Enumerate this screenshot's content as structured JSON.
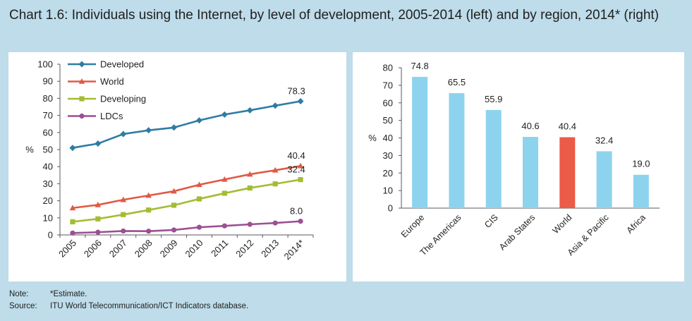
{
  "title": "Chart 1.6: Individuals using the Internet, by level of development, 2005-2014 (left) and by region, 2014* (right)",
  "notes": {
    "note_label": "Note:",
    "note_text": "*Estimate.",
    "source_label": "Source:",
    "source_text": "ITU World Telecommunication/ICT Indicators database."
  },
  "chart_data": [
    {
      "type": "line",
      "title": "",
      "xlabel": "",
      "ylabel": "%",
      "ylim": [
        0,
        100
      ],
      "yticks": [
        0,
        10,
        20,
        30,
        40,
        50,
        60,
        70,
        80,
        90,
        100
      ],
      "grid": false,
      "legend_position": "top-left",
      "x": [
        "2005",
        "2006",
        "2007",
        "2008",
        "2009",
        "2010",
        "2011",
        "2012",
        "2013",
        "2014*"
      ],
      "series": [
        {
          "name": "Developed",
          "color": "#2e7ca3",
          "marker": "diamond",
          "values": [
            51.0,
            53.5,
            59.1,
            61.3,
            62.9,
            67.1,
            70.5,
            73.0,
            75.7,
            78.3
          ],
          "end_label": "78.3"
        },
        {
          "name": "World",
          "color": "#e05a45",
          "marker": "triangle",
          "values": [
            15.8,
            17.6,
            20.6,
            23.1,
            25.6,
            29.4,
            32.5,
            35.5,
            37.9,
            40.4
          ],
          "end_label": "40.4"
        },
        {
          "name": "Developing",
          "color": "#a3bd32",
          "marker": "square",
          "values": [
            7.7,
            9.4,
            11.9,
            14.6,
            17.4,
            21.1,
            24.4,
            27.5,
            29.9,
            32.4
          ],
          "end_label": "32.4"
        },
        {
          "name": "LDCs",
          "color": "#9c4f93",
          "marker": "circle",
          "values": [
            1.1,
            1.6,
            2.3,
            2.2,
            2.9,
            4.5,
            5.3,
            6.2,
            7.0,
            8.0
          ],
          "end_label": "8.0"
        }
      ]
    },
    {
      "type": "bar",
      "title": "",
      "xlabel": "",
      "ylabel": "%",
      "ylim": [
        0,
        80
      ],
      "yticks": [
        0,
        10,
        20,
        30,
        40,
        50,
        60,
        70,
        80
      ],
      "grid": false,
      "categories": [
        "Europe",
        "The Americas",
        "CIS",
        "Arab States",
        "World",
        "Asia & Pacific",
        "Africa"
      ],
      "values": [
        74.8,
        65.5,
        55.9,
        40.6,
        40.4,
        32.4,
        19.0
      ],
      "labels": [
        "74.8",
        "65.5",
        "55.9",
        "40.6",
        "40.4",
        "32.4",
        "19.0"
      ],
      "bar_color": "#8dd3ee",
      "highlight_color": "#ec5a48",
      "highlight_category": "World"
    }
  ]
}
